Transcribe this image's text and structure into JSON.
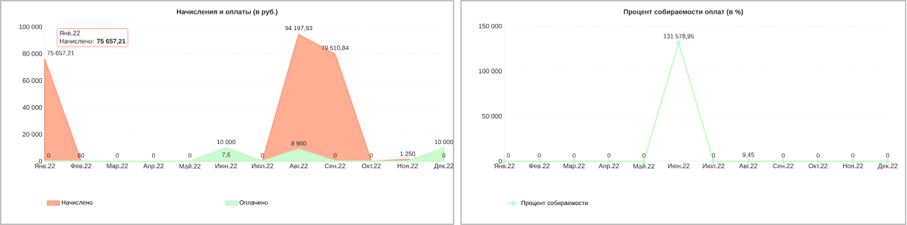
{
  "chart_data": [
    {
      "type": "area",
      "title": "Начисления и оплаты (в руб.)",
      "categories": [
        "Янв.22",
        "Фев.22",
        "Мар.22",
        "Апр.22",
        "Май.22",
        "Июн.22",
        "Июл.22",
        "Авг.22",
        "Сен.22",
        "Окт.22",
        "Ноя.22",
        "Дек.22"
      ],
      "series": [
        {
          "name": "Начислено",
          "color": "#ff9e80",
          "values": [
            75657.21,
            60,
            0,
            0,
            0,
            7.6,
            0,
            94197.93,
            79510.84,
            0,
            1250,
            0
          ],
          "value_labels": [
            "75 657,21",
            "60",
            "0",
            "0",
            "0",
            "7,6",
            null,
            "94 197,93",
            "79 510,84",
            "0",
            "1 250",
            "0"
          ]
        },
        {
          "name": "Оплачено",
          "color": "#c2fcc6",
          "values": [
            0,
            0,
            0,
            0,
            0,
            10000,
            0,
            8900,
            0,
            0,
            0,
            10000
          ],
          "value_labels": [
            "0",
            null,
            null,
            null,
            null,
            "10 000",
            "0",
            "8 900",
            "0",
            null,
            null,
            "10 000"
          ]
        }
      ],
      "ylim": [
        0,
        100000
      ],
      "yticks": [
        0,
        {
          "value": 20000,
          "label": "20 000"
        },
        {
          "value": 40000,
          "label": "40 000"
        },
        {
          "value": 60000,
          "label": "60 000"
        },
        {
          "value": 80000,
          "label": "80 000"
        },
        {
          "value": 100000,
          "label": "100 000"
        }
      ],
      "grid": "y",
      "legend": "bottom",
      "annotations": [
        "Янв.22",
        "Начислено: **75 657,21**"
      ]
    },
    {
      "type": "line",
      "title": "Процент собираемости оплат (в %)",
      "categories": [
        "Янв.22",
        "Фев.22",
        "Мар.22",
        "Апр.22",
        "Май.22",
        "Июн.22",
        "Июл.22",
        "Авг.22",
        "Сен.22",
        "Окт.22",
        "Ноя.22",
        "Дек.22"
      ],
      "series": [
        {
          "name": "Процент собираемости",
          "color": "#c2fcc6",
          "values": [
            0,
            0,
            0,
            0,
            0,
            131578.95,
            0,
            9.45,
            0,
            0,
            0,
            0
          ],
          "value_labels": [
            "0",
            "0",
            "0",
            "0",
            "0",
            "131 578,95",
            "0",
            "9,45",
            "0",
            "0",
            "0",
            "0"
          ]
        }
      ],
      "ylim": [
        0,
        150000
      ],
      "yticks": [
        0,
        {
          "value": 50000,
          "label": "50 000"
        },
        {
          "value": 100000,
          "label": "100 000"
        },
        {
          "value": 150000,
          "label": "150 000"
        }
      ],
      "grid": "y",
      "legend": "bottom",
      "marker": "diamond"
    }
  ]
}
